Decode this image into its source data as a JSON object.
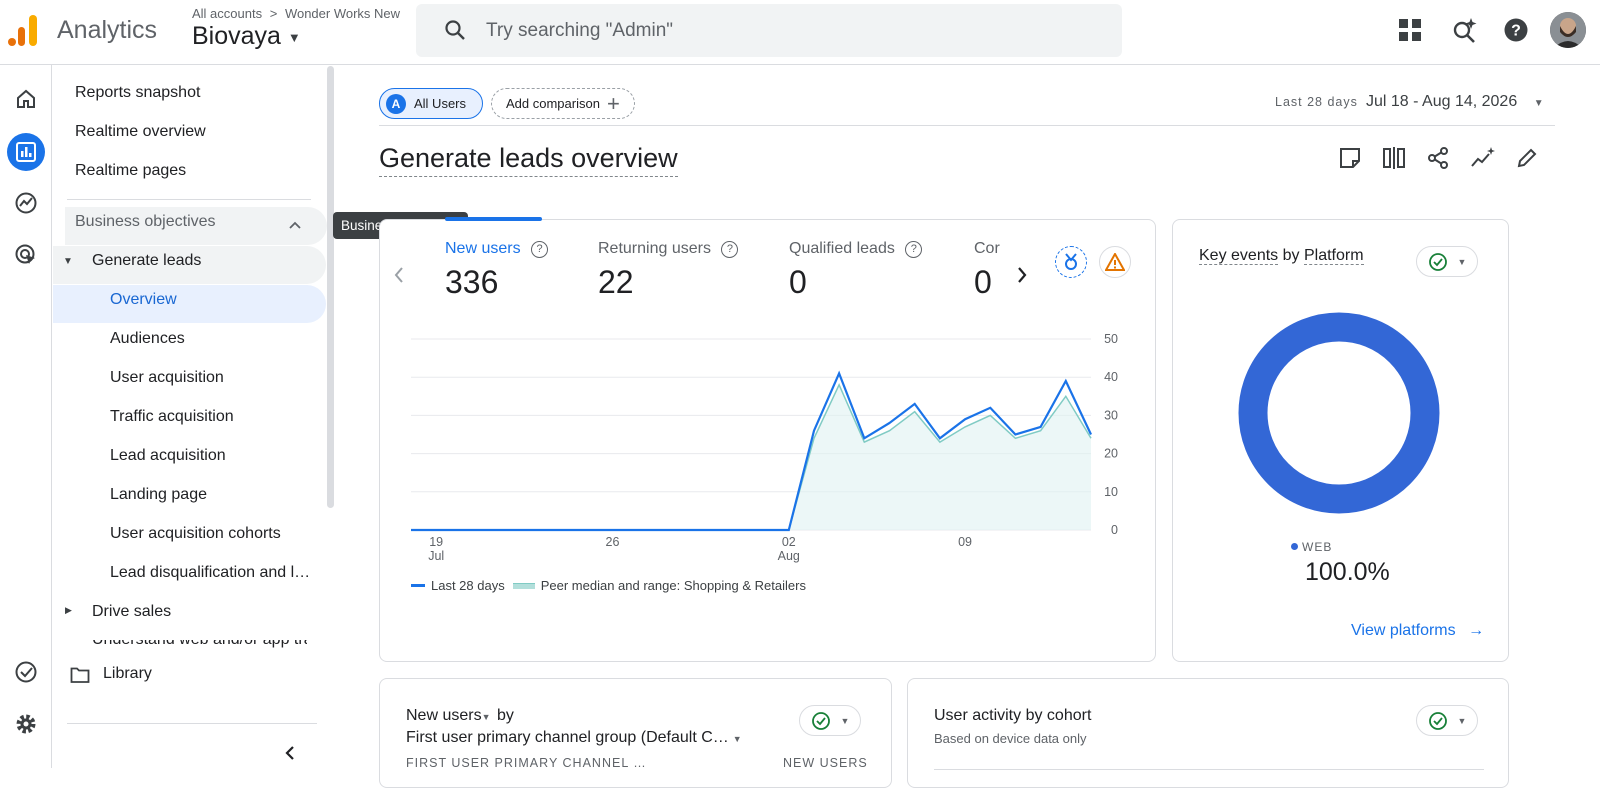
{
  "header": {
    "product_name": "Analytics",
    "breadcrumb": {
      "root": "All accounts",
      "separator": ">",
      "account": "Wonder Works New"
    },
    "property_name": "Biovaya",
    "search_placeholder": "Try searching \"Admin\"",
    "icons": [
      "apps-grid-icon",
      "sparkle-search-icon",
      "help-icon",
      "avatar"
    ]
  },
  "rail": {
    "items": [
      "home-icon",
      "reports-icon",
      "explore-icon",
      "advertising-icon",
      "admin-check-icon",
      "settings-gear-icon"
    ],
    "active": "reports-icon"
  },
  "nav": {
    "items": [
      {
        "label": "Reports snapshot"
      },
      {
        "label": "Realtime overview"
      },
      {
        "label": "Realtime pages"
      },
      {
        "label": "Business objectives"
      },
      {
        "label": "Generate leads"
      },
      {
        "label": "Overview"
      },
      {
        "label": "Audiences"
      },
      {
        "label": "User acquisition"
      },
      {
        "label": "Traffic acquisition"
      },
      {
        "label": "Lead acquisition"
      },
      {
        "label": "Landing page"
      },
      {
        "label": "User acquisition cohorts"
      },
      {
        "label": "Lead disqualification and l…"
      },
      {
        "label": "Drive sales"
      },
      {
        "label": "Understand web and/or app traffic"
      }
    ],
    "library_label": "Library",
    "tooltip": "Business objectives"
  },
  "toolbar": {
    "segment_letter": "A",
    "segment_label": "All Users",
    "add_comparison_label": "Add comparison",
    "date_label": "Last 28 days",
    "date_range": "Jul 18 - Aug 14, 2026"
  },
  "page_title": "Generate leads overview",
  "metrics": [
    {
      "label": "New users",
      "value": "336"
    },
    {
      "label": "Returning users",
      "value": "22"
    },
    {
      "label": "Qualified leads",
      "value": "0"
    },
    {
      "label": "Cor",
      "value": "0"
    }
  ],
  "chart_data": [
    {
      "type": "line",
      "ylim": [
        0,
        50
      ],
      "yticks": [
        "50",
        "40",
        "30",
        "20",
        "10",
        "0"
      ],
      "xticks": [
        {
          "label": "19",
          "sub": "Jul"
        },
        {
          "label": "26",
          "sub": ""
        },
        {
          "label": "02",
          "sub": "Aug"
        },
        {
          "label": "09",
          "sub": ""
        }
      ],
      "x": [
        "Jul 18",
        "Jul 19",
        "Jul 20",
        "Jul 21",
        "Jul 22",
        "Jul 23",
        "Jul 24",
        "Jul 25",
        "Jul 26",
        "Jul 27",
        "Jul 28",
        "Jul 29",
        "Jul 30",
        "Jul 31",
        "Aug 1",
        "Aug 2",
        "Aug 3",
        "Aug 4",
        "Aug 5",
        "Aug 6",
        "Aug 7",
        "Aug 8",
        "Aug 9",
        "Aug 10",
        "Aug 11",
        "Aug 12",
        "Aug 13",
        "Aug 14"
      ],
      "series": [
        {
          "name": "Last 28 days",
          "color": "#1a73e8",
          "values": [
            0,
            0,
            0,
            0,
            0,
            0,
            0,
            0,
            0,
            0,
            0,
            0,
            0,
            0,
            0,
            0,
            26,
            41,
            24,
            28,
            33,
            24,
            29,
            32,
            25,
            27,
            39,
            25
          ]
        },
        {
          "name": "Peer median and range: Shopping & Retailers",
          "color": "#80cbc4",
          "values": [
            0,
            0,
            0,
            0,
            0,
            0,
            0,
            0,
            0,
            0,
            0,
            0,
            0,
            0,
            0,
            0,
            24,
            38,
            23,
            26,
            31,
            23,
            27,
            30,
            24,
            26,
            35,
            24
          ]
        }
      ]
    },
    {
      "type": "pie",
      "title": "Key events by Platform",
      "title_parts": {
        "metric": "Key events",
        "by": "by",
        "dimension": "Platform"
      },
      "slices": [
        {
          "label": "WEB",
          "value": 100.0,
          "display": "100.0%",
          "color": "#3367d6"
        }
      ],
      "link": "View platforms"
    }
  ],
  "cards": {
    "new_users_by": {
      "metric": "New users",
      "by": "by",
      "dimension": "First user primary channel group (Default C…",
      "col1": "FIRST USER PRIMARY CHANNEL …",
      "col2": "NEW USERS"
    },
    "cohort": {
      "title": "User activity by cohort",
      "subtitle": "Based on device data only"
    }
  },
  "colors": {
    "accent": "#1a73e8",
    "ok": "#188038",
    "warn": "#e37400",
    "nav_active": "#e8f0fe"
  }
}
